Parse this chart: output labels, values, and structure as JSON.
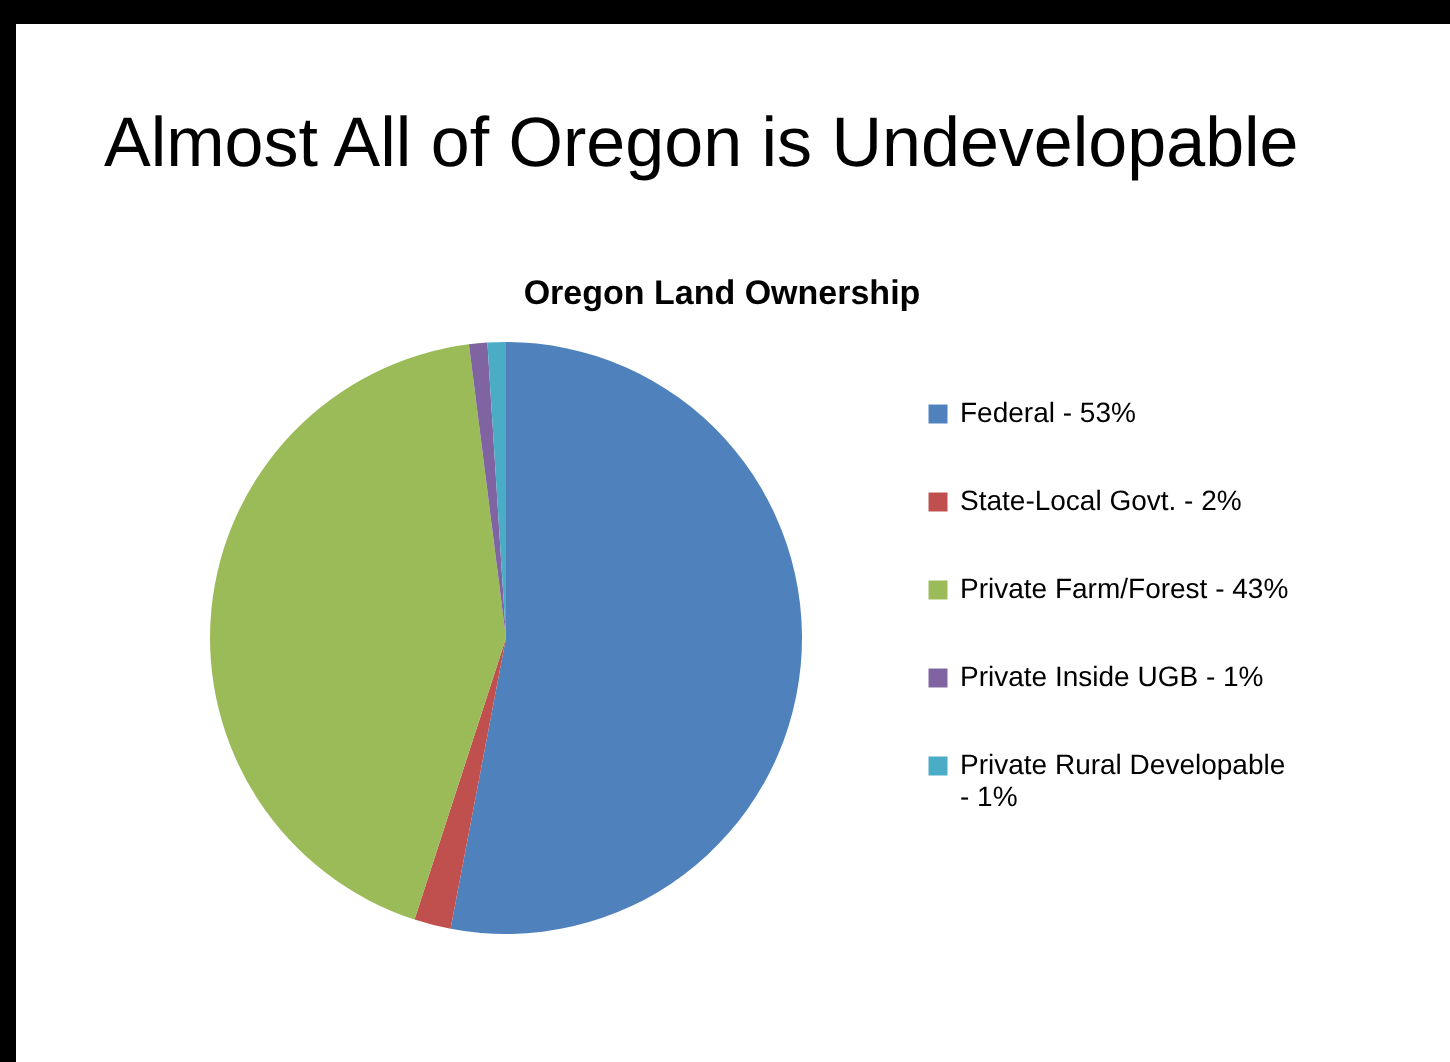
{
  "chart_data": {
    "type": "pie",
    "title": "Almost All of Oregon is Undevelopable",
    "subtitle": "Oregon Land Ownership",
    "categories": [
      "Federal - 53%",
      "State-Local Govt. - 2%",
      "Private Farm/Forest - 43%",
      "Private Inside UGB - 1%",
      "Private Rural Developable - 1%"
    ],
    "values": [
      53,
      2,
      43,
      1,
      1
    ],
    "colors": [
      "#4f81bd",
      "#c0504d",
      "#9bbb59",
      "#8064a2",
      "#4bacc6"
    ],
    "legend": "right"
  }
}
